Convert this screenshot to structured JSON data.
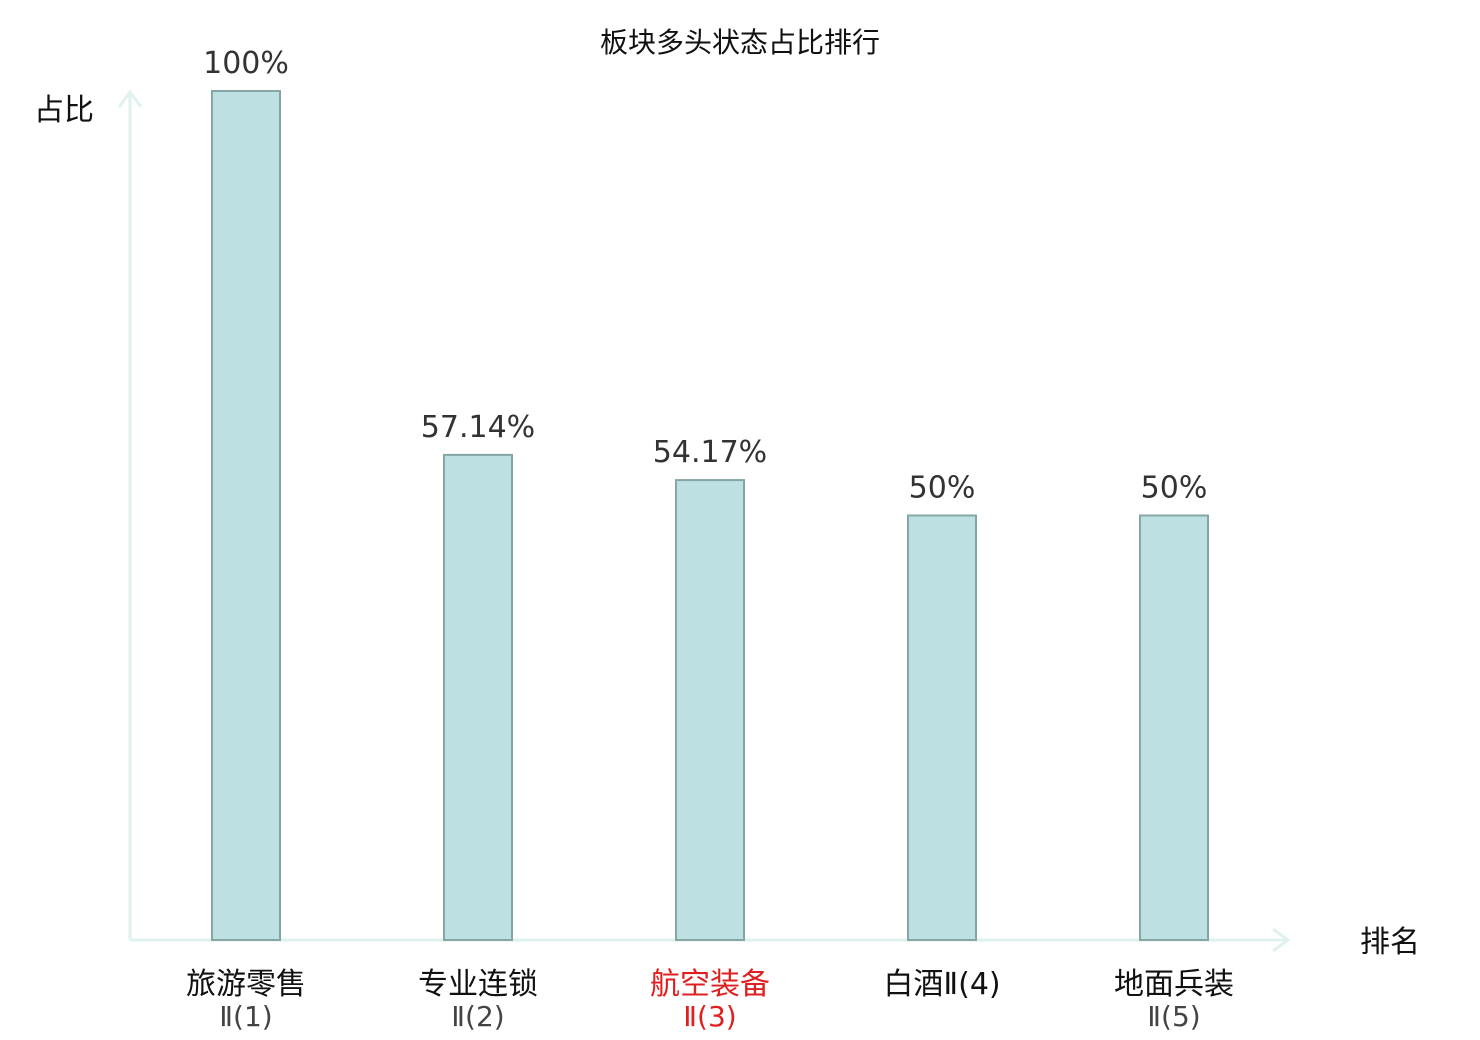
{
  "chart_data": {
    "type": "bar",
    "title": "板块多头状态占比排行",
    "xlabel": "排名",
    "ylabel": "占比",
    "ylim": [
      0,
      100
    ],
    "grid": false,
    "categories": [
      {
        "line1": "旅游零售",
        "line2": "Ⅱ(1)",
        "highlight": false
      },
      {
        "line1": "专业连锁",
        "line2": "Ⅱ(2)",
        "highlight": false
      },
      {
        "line1": "航空装备",
        "line2": "Ⅱ(3)",
        "highlight": true
      },
      {
        "line1": "白酒Ⅱ(4)",
        "line2": "",
        "highlight": false
      },
      {
        "line1": "地面兵装",
        "line2": "Ⅱ(5)",
        "highlight": false
      }
    ],
    "values": [
      100,
      57.14,
      54.17,
      50,
      50
    ],
    "value_labels": [
      "100%",
      "57.14%",
      "54.17%",
      "50%",
      "50%"
    ]
  },
  "colors": {
    "bar_fill": "#bde1e2",
    "bar_stroke": "#86a6a6",
    "axis": "#dff2ef",
    "highlight_text": "#e02020",
    "normal_text": "#111111",
    "sub_text": "#444444"
  }
}
